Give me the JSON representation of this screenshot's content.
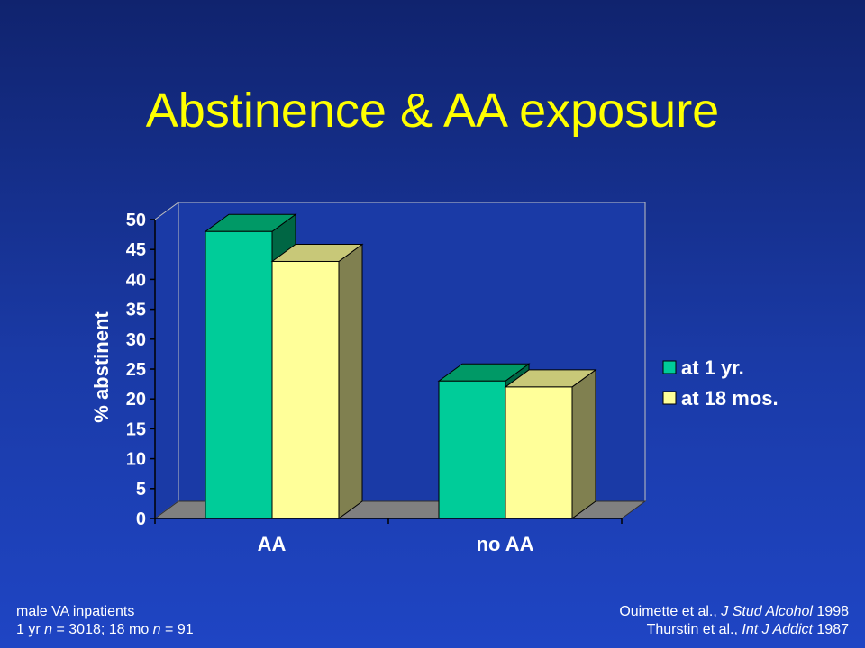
{
  "slide": {
    "title": "Abstinence & AA exposure"
  },
  "colors": {
    "series_1": "#00cc99",
    "series_1_top": "#009966",
    "series_1_side": "#006644",
    "series_2": "#ffff99",
    "series_2_top": "#c8c878",
    "series_2_side": "#808050",
    "floor": "#808080",
    "walls": "#1a3aa6"
  },
  "chart_data": {
    "type": "bar",
    "categories": [
      "AA",
      "no AA"
    ],
    "series": [
      {
        "name": "at 1 yr.",
        "values": [
          48,
          23
        ]
      },
      {
        "name": "at 18 mos.",
        "values": [
          43,
          22
        ]
      }
    ],
    "ylabel": "% abstinent",
    "xlabel": "",
    "ylim": [
      0,
      50
    ],
    "yticks": [
      0,
      5,
      10,
      15,
      20,
      25,
      30,
      35,
      40,
      45,
      50
    ],
    "legend": "right",
    "grid": false
  },
  "footer": {
    "left_line1": "male VA inpatients",
    "left_line2_a": "1 yr ",
    "left_line2_n1": "n",
    "left_line2_b": " = 3018; 18 mo ",
    "left_line2_n2": "n",
    "left_line2_c": " = 91",
    "right_line1_author": "Ouimette et al., ",
    "right_line1_journal": "J Stud Alcohol",
    "right_line1_year": " 1998",
    "right_line2_author": "Thurstin et al., ",
    "right_line2_journal": "Int J Addict",
    "right_line2_year": " 1987"
  }
}
